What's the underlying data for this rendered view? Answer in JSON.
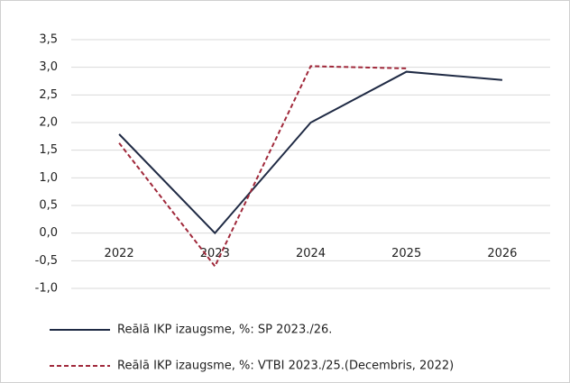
{
  "chart_data": {
    "type": "line",
    "categories": [
      "2022",
      "2023",
      "2024",
      "2025",
      "2026"
    ],
    "series": [
      {
        "name": "Reālā IKP izaugsme, %: SP 2023./26.",
        "color": "#1f2a44",
        "dash": false,
        "values": [
          1.79,
          0.0,
          2.0,
          2.92,
          2.77
        ]
      },
      {
        "name": "Reālā IKP izaugsme, %: VTBI 2023./25.(Decembris, 2022)",
        "color": "#a0283a",
        "dash": true,
        "values": [
          1.63,
          -0.6,
          3.02,
          2.98,
          null
        ]
      }
    ],
    "ylim": [
      -1.0,
      3.5
    ],
    "yticks": [
      {
        "value": -1.0,
        "label": "-1,0"
      },
      {
        "value": -0.5,
        "label": "-0,5"
      },
      {
        "value": 0.0,
        "label": "0,0"
      },
      {
        "value": 0.5,
        "label": "0,5"
      },
      {
        "value": 1.0,
        "label": "1,0"
      },
      {
        "value": 1.5,
        "label": "1,5"
      },
      {
        "value": 2.0,
        "label": "2,0"
      },
      {
        "value": 2.5,
        "label": "2,5"
      },
      {
        "value": 3.0,
        "label": "3,0"
      },
      {
        "value": 3.5,
        "label": "3,5"
      }
    ],
    "grid": true,
    "legend": "bottom"
  }
}
